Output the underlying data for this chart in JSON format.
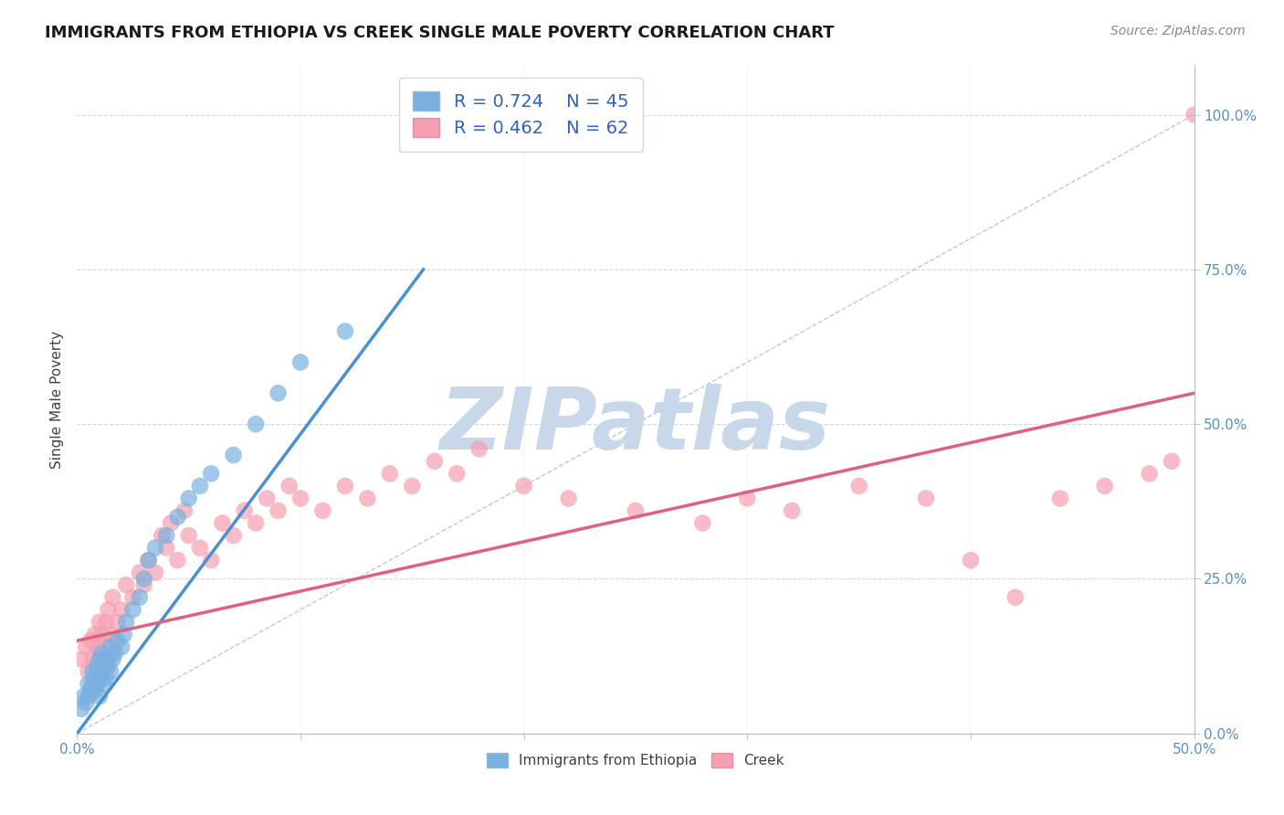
{
  "title": "IMMIGRANTS FROM ETHIOPIA VS CREEK SINGLE MALE POVERTY CORRELATION CHART",
  "source_text": "Source: ZipAtlas.com",
  "ylabel": "Single Male Poverty",
  "xlim": [
    0.0,
    0.5
  ],
  "ylim": [
    0.0,
    1.08
  ],
  "xtick_labels_ends": [
    "0.0%",
    "50.0%"
  ],
  "xtick_values_ends": [
    0.0,
    0.5
  ],
  "xtick_minor_values": [
    0.1,
    0.2,
    0.3,
    0.4
  ],
  "ytick_labels": [
    "0.0%",
    "25.0%",
    "50.0%",
    "75.0%",
    "100.0%"
  ],
  "ytick_values": [
    0.0,
    0.25,
    0.5,
    0.75,
    1.0
  ],
  "ethiopia_color": "#7ab0e0",
  "ethiopia_line_color": "#4a90d0",
  "creek_color": "#f4a0b0",
  "creek_line_color": "#e06080",
  "ethiopia_R": 0.724,
  "ethiopia_N": 45,
  "creek_R": 0.462,
  "creek_N": 62,
  "title_fontsize": 13,
  "axis_label_fontsize": 11,
  "tick_fontsize": 11,
  "legend_fontsize": 14,
  "watermark_text": "ZIPatlas",
  "watermark_color": "#c8d8ea",
  "background_color": "#ffffff",
  "grid_color": "#d0d8e0",
  "ethiopia_scatter": {
    "x": [
      0.002,
      0.003,
      0.004,
      0.005,
      0.005,
      0.006,
      0.007,
      0.007,
      0.008,
      0.008,
      0.009,
      0.009,
      0.01,
      0.01,
      0.01,
      0.011,
      0.011,
      0.012,
      0.012,
      0.013,
      0.013,
      0.014,
      0.015,
      0.015,
      0.016,
      0.017,
      0.018,
      0.02,
      0.021,
      0.022,
      0.025,
      0.028,
      0.03,
      0.032,
      0.035,
      0.04,
      0.045,
      0.05,
      0.055,
      0.06,
      0.07,
      0.08,
      0.09,
      0.1,
      0.12
    ],
    "y": [
      0.04,
      0.06,
      0.05,
      0.08,
      0.06,
      0.07,
      0.08,
      0.1,
      0.07,
      0.09,
      0.08,
      0.11,
      0.06,
      0.09,
      0.12,
      0.1,
      0.13,
      0.08,
      0.11,
      0.09,
      0.12,
      0.11,
      0.1,
      0.14,
      0.12,
      0.13,
      0.15,
      0.14,
      0.16,
      0.18,
      0.2,
      0.22,
      0.25,
      0.28,
      0.3,
      0.32,
      0.35,
      0.38,
      0.4,
      0.42,
      0.45,
      0.5,
      0.55,
      0.6,
      0.65
    ]
  },
  "creek_scatter": {
    "x": [
      0.002,
      0.004,
      0.005,
      0.006,
      0.007,
      0.008,
      0.009,
      0.01,
      0.01,
      0.011,
      0.012,
      0.013,
      0.014,
      0.015,
      0.016,
      0.018,
      0.02,
      0.022,
      0.025,
      0.028,
      0.03,
      0.032,
      0.035,
      0.038,
      0.04,
      0.042,
      0.045,
      0.048,
      0.05,
      0.055,
      0.06,
      0.065,
      0.07,
      0.075,
      0.08,
      0.085,
      0.09,
      0.095,
      0.1,
      0.11,
      0.12,
      0.13,
      0.14,
      0.15,
      0.16,
      0.17,
      0.18,
      0.2,
      0.22,
      0.25,
      0.28,
      0.3,
      0.32,
      0.35,
      0.38,
      0.4,
      0.42,
      0.44,
      0.46,
      0.48,
      0.49,
      0.5
    ],
    "y": [
      0.12,
      0.14,
      0.1,
      0.15,
      0.12,
      0.16,
      0.14,
      0.12,
      0.18,
      0.16,
      0.14,
      0.18,
      0.2,
      0.16,
      0.22,
      0.18,
      0.2,
      0.24,
      0.22,
      0.26,
      0.24,
      0.28,
      0.26,
      0.32,
      0.3,
      0.34,
      0.28,
      0.36,
      0.32,
      0.3,
      0.28,
      0.34,
      0.32,
      0.36,
      0.34,
      0.38,
      0.36,
      0.4,
      0.38,
      0.36,
      0.4,
      0.38,
      0.42,
      0.4,
      0.44,
      0.42,
      0.46,
      0.4,
      0.38,
      0.36,
      0.34,
      0.38,
      0.36,
      0.4,
      0.38,
      0.28,
      0.22,
      0.38,
      0.4,
      0.42,
      0.44,
      1.0
    ]
  },
  "eth_line_x": [
    0.0,
    0.155
  ],
  "eth_line_y": [
    0.0,
    0.75
  ],
  "creek_line_x": [
    0.0,
    0.5
  ],
  "creek_line_y": [
    0.15,
    0.55
  ]
}
